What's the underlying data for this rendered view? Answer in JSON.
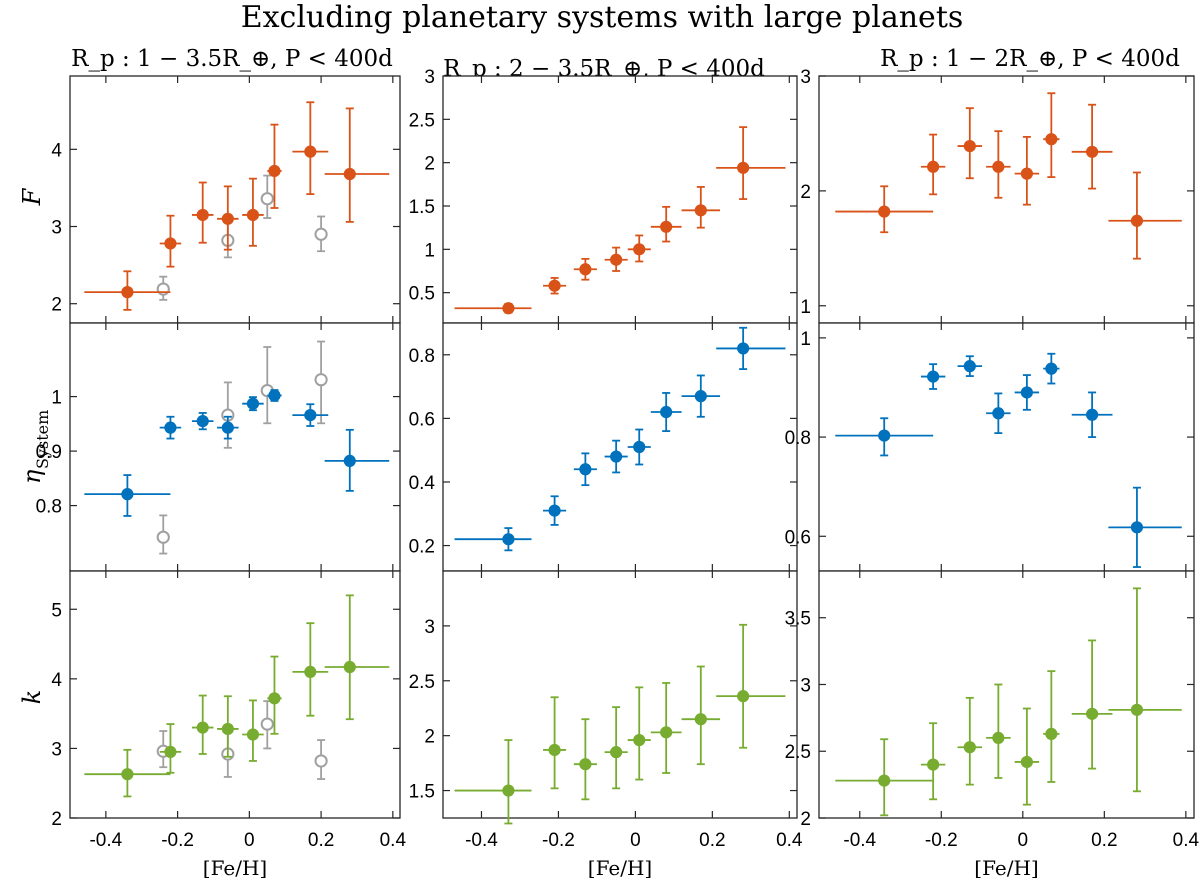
{
  "title": "Excluding planetary systems with large planets",
  "x_label": "[Fe/H]",
  "x_ticks": [
    "-0.4",
    "-0.2",
    "0",
    "0.2",
    "0.4"
  ],
  "row_labels": {
    "F": "F",
    "eta": "η",
    "eta_sub": "System",
    "k": "k"
  },
  "columns": [
    {
      "title": "R_p : 1 − 3.5R_⊕,  P < 400d"
    },
    {
      "title": "R_p : 2 − 3.5R_⊕,  P < 400d"
    },
    {
      "title": "R_p : 1 − 2R_⊕,  P < 400d"
    }
  ],
  "colors": {
    "F": "#d95319",
    "eta": "#0072bd",
    "k": "#77ac30",
    "comparison": "#a0a0a0"
  },
  "chart_data": [
    {
      "type": "scatter",
      "row": "F",
      "col": 0,
      "title": "R_p : 1 − 3.5R_⊕,  P < 400d",
      "ylabel": "F",
      "xlabel": "",
      "xlim": [
        -0.5,
        0.42
      ],
      "ylim": [
        1.75,
        4.95
      ],
      "yticks": [
        2,
        3,
        4
      ],
      "series": [
        {
          "name": "main",
          "style": "filled",
          "color": "#d95319",
          "x": [
            -0.34,
            -0.22,
            -0.13,
            -0.06,
            0.01,
            0.07,
            0.17,
            0.28
          ],
          "y": [
            2.15,
            2.78,
            3.15,
            3.1,
            3.15,
            3.72,
            3.97,
            3.68
          ],
          "xerr_lo": [
            0.12,
            0.03,
            0.03,
            0.03,
            0.03,
            0.02,
            0.05,
            0.07
          ],
          "xerr_hi": [
            0.12,
            0.03,
            0.03,
            0.03,
            0.03,
            0.02,
            0.05,
            0.11
          ],
          "yerr_lo": [
            0.23,
            0.3,
            0.36,
            0.4,
            0.4,
            0.48,
            0.55,
            0.62
          ],
          "yerr_hi": [
            0.27,
            0.36,
            0.42,
            0.42,
            0.47,
            0.6,
            0.64,
            0.85
          ]
        },
        {
          "name": "comparison",
          "style": "open",
          "color": "#a0a0a0",
          "x": [
            -0.24,
            -0.06,
            0.05,
            0.2
          ],
          "y": [
            2.19,
            2.82,
            3.36,
            2.9
          ],
          "xerr_lo": [
            0,
            0,
            0,
            0
          ],
          "xerr_hi": [
            0,
            0,
            0,
            0
          ],
          "yerr_lo": [
            0.14,
            0.22,
            0.25,
            0.22
          ],
          "yerr_hi": [
            0.16,
            0.25,
            0.3,
            0.23
          ]
        }
      ]
    },
    {
      "type": "scatter",
      "row": "F",
      "col": 1,
      "title": "R_p : 2 − 3.5R_⊕,  P < 400d",
      "ylabel": "",
      "xlabel": "",
      "xlim": [
        -0.5,
        0.42
      ],
      "ylim": [
        0.15,
        3.0
      ],
      "yticks": [
        0.5,
        1,
        1.5,
        2,
        2.5,
        3
      ],
      "series": [
        {
          "name": "main",
          "style": "filled",
          "color": "#d95319",
          "x": [
            -0.33,
            -0.21,
            -0.13,
            -0.05,
            0.01,
            0.08,
            0.17,
            0.28
          ],
          "y": [
            0.32,
            0.58,
            0.77,
            0.88,
            1.0,
            1.26,
            1.45,
            1.94
          ],
          "xerr_lo": [
            0.14,
            0.03,
            0.03,
            0.03,
            0.03,
            0.04,
            0.05,
            0.07
          ],
          "xerr_hi": [
            0.06,
            0.03,
            0.03,
            0.03,
            0.03,
            0.04,
            0.05,
            0.11
          ],
          "yerr_lo": [
            0.05,
            0.09,
            0.12,
            0.13,
            0.14,
            0.17,
            0.2,
            0.36
          ],
          "yerr_hi": [
            0.05,
            0.09,
            0.12,
            0.14,
            0.16,
            0.23,
            0.27,
            0.47
          ]
        }
      ]
    },
    {
      "type": "scatter",
      "row": "F",
      "col": 2,
      "title": "R_p : 1 − 2R_⊕,  P < 400d",
      "ylabel": "",
      "xlabel": "",
      "xlim": [
        -0.5,
        0.42
      ],
      "ylim": [
        0.85,
        3.0
      ],
      "yticks": [
        1,
        2,
        3
      ],
      "series": [
        {
          "name": "main",
          "style": "filled",
          "color": "#d95319",
          "x": [
            -0.34,
            -0.22,
            -0.13,
            -0.06,
            0.01,
            0.07,
            0.17,
            0.28
          ],
          "y": [
            1.82,
            2.21,
            2.39,
            2.21,
            2.15,
            2.45,
            2.34,
            1.74
          ],
          "xerr_lo": [
            0.12,
            0.03,
            0.03,
            0.03,
            0.03,
            0.02,
            0.05,
            0.07
          ],
          "xerr_hi": [
            0.12,
            0.03,
            0.03,
            0.03,
            0.03,
            0.02,
            0.05,
            0.11
          ],
          "yerr_lo": [
            0.18,
            0.24,
            0.28,
            0.27,
            0.27,
            0.33,
            0.32,
            0.33
          ],
          "yerr_hi": [
            0.22,
            0.28,
            0.33,
            0.31,
            0.32,
            0.4,
            0.41,
            0.42
          ]
        }
      ]
    },
    {
      "type": "scatter",
      "row": "eta",
      "col": 0,
      "title": "",
      "ylabel": "η_System",
      "xlabel": "",
      "xlim": [
        -0.5,
        0.42
      ],
      "ylim": [
        0.68,
        1.135
      ],
      "yticks": [
        0.8,
        0.9,
        1
      ],
      "series": [
        {
          "name": "main",
          "style": "filled",
          "color": "#0072bd",
          "x": [
            -0.34,
            -0.22,
            -0.13,
            -0.06,
            0.01,
            0.07,
            0.17,
            0.28
          ],
          "y": [
            0.821,
            0.943,
            0.955,
            0.943,
            0.987,
            1.002,
            0.966,
            0.882
          ],
          "xerr_lo": [
            0.12,
            0.03,
            0.03,
            0.03,
            0.03,
            0.02,
            0.05,
            0.07
          ],
          "xerr_hi": [
            0.12,
            0.03,
            0.03,
            0.03,
            0.03,
            0.02,
            0.05,
            0.11
          ],
          "yerr_lo": [
            0.04,
            0.02,
            0.015,
            0.02,
            0.012,
            0.01,
            0.02,
            0.055
          ],
          "yerr_hi": [
            0.035,
            0.02,
            0.015,
            0.02,
            0.012,
            0.01,
            0.02,
            0.057
          ]
        },
        {
          "name": "comparison",
          "style": "open",
          "color": "#a0a0a0",
          "x": [
            -0.24,
            -0.06,
            0.05,
            0.2
          ],
          "y": [
            0.742,
            0.966,
            1.011,
            1.031
          ],
          "xerr_lo": [
            0,
            0,
            0,
            0
          ],
          "xerr_hi": [
            0,
            0,
            0,
            0
          ],
          "yerr_lo": [
            0.03,
            0.06,
            0.06,
            0.08
          ],
          "yerr_hi": [
            0.04,
            0.06,
            0.08,
            0.07
          ]
        }
      ]
    },
    {
      "type": "scatter",
      "row": "eta",
      "col": 1,
      "title": "",
      "ylabel": "",
      "xlabel": "",
      "xlim": [
        -0.5,
        0.42
      ],
      "ylim": [
        0.12,
        0.9
      ],
      "yticks": [
        0.2,
        0.4,
        0.6,
        0.8
      ],
      "series": [
        {
          "name": "main",
          "style": "filled",
          "color": "#0072bd",
          "x": [
            -0.33,
            -0.21,
            -0.13,
            -0.05,
            0.01,
            0.08,
            0.17,
            0.28
          ],
          "y": [
            0.22,
            0.31,
            0.44,
            0.48,
            0.51,
            0.62,
            0.67,
            0.82
          ],
          "xerr_lo": [
            0.14,
            0.03,
            0.03,
            0.03,
            0.03,
            0.04,
            0.05,
            0.07
          ],
          "xerr_hi": [
            0.06,
            0.03,
            0.03,
            0.03,
            0.03,
            0.04,
            0.05,
            0.11
          ],
          "yerr_lo": [
            0.035,
            0.045,
            0.05,
            0.05,
            0.055,
            0.06,
            0.065,
            0.065
          ],
          "yerr_hi": [
            0.035,
            0.045,
            0.05,
            0.05,
            0.055,
            0.06,
            0.065,
            0.065
          ]
        }
      ]
    },
    {
      "type": "scatter",
      "row": "eta",
      "col": 2,
      "title": "",
      "ylabel": "",
      "xlabel": "",
      "xlim": [
        -0.5,
        0.42
      ],
      "ylim": [
        0.53,
        1.03
      ],
      "yticks": [
        0.6,
        0.8,
        1
      ],
      "series": [
        {
          "name": "main",
          "style": "filled",
          "color": "#0072bd",
          "x": [
            -0.34,
            -0.22,
            -0.13,
            -0.06,
            0.01,
            0.07,
            0.17,
            0.28
          ],
          "y": [
            0.803,
            0.922,
            0.943,
            0.848,
            0.89,
            0.938,
            0.845,
            0.618
          ],
          "xerr_lo": [
            0.12,
            0.03,
            0.03,
            0.03,
            0.03,
            0.02,
            0.05,
            0.07
          ],
          "xerr_hi": [
            0.12,
            0.03,
            0.03,
            0.03,
            0.03,
            0.02,
            0.05,
            0.11
          ],
          "yerr_lo": [
            0.04,
            0.025,
            0.02,
            0.04,
            0.035,
            0.03,
            0.045,
            0.08
          ],
          "yerr_hi": [
            0.035,
            0.025,
            0.02,
            0.04,
            0.035,
            0.03,
            0.045,
            0.08
          ]
        }
      ]
    },
    {
      "type": "scatter",
      "row": "k",
      "col": 0,
      "title": "",
      "ylabel": "k",
      "xlabel": "[Fe/H]",
      "xlim": [
        -0.5,
        0.42
      ],
      "ylim": [
        2.0,
        5.55
      ],
      "yticks": [
        2,
        3,
        4,
        5
      ],
      "series": [
        {
          "name": "main",
          "style": "filled",
          "color": "#77ac30",
          "x": [
            -0.34,
            -0.22,
            -0.13,
            -0.06,
            0.01,
            0.07,
            0.17,
            0.28
          ],
          "y": [
            2.63,
            2.95,
            3.3,
            3.28,
            3.2,
            3.72,
            4.1,
            4.17
          ],
          "xerr_lo": [
            0.12,
            0.03,
            0.03,
            0.03,
            0.03,
            0.02,
            0.05,
            0.07
          ],
          "xerr_hi": [
            0.12,
            0.03,
            0.03,
            0.03,
            0.03,
            0.02,
            0.05,
            0.11
          ],
          "yerr_lo": [
            0.32,
            0.3,
            0.38,
            0.4,
            0.38,
            0.51,
            0.63,
            0.75
          ],
          "yerr_hi": [
            0.35,
            0.4,
            0.46,
            0.47,
            0.49,
            0.6,
            0.7,
            1.03
          ]
        },
        {
          "name": "comparison",
          "style": "open",
          "color": "#a0a0a0",
          "x": [
            -0.24,
            -0.06,
            0.05,
            0.2
          ],
          "y": [
            2.96,
            2.92,
            3.35,
            2.82
          ],
          "xerr_lo": [
            0,
            0,
            0,
            0
          ],
          "xerr_hi": [
            0,
            0,
            0,
            0
          ],
          "yerr_lo": [
            0.23,
            0.33,
            0.35,
            0.26
          ],
          "yerr_hi": [
            0.29,
            0.37,
            0.33,
            0.3
          ]
        }
      ]
    },
    {
      "type": "scatter",
      "row": "k",
      "col": 1,
      "title": "",
      "ylabel": "",
      "xlabel": "[Fe/H]",
      "xlim": [
        -0.5,
        0.42
      ],
      "ylim": [
        1.25,
        3.5
      ],
      "yticks": [
        1.5,
        2,
        2.5,
        3
      ],
      "series": [
        {
          "name": "main",
          "style": "filled",
          "color": "#77ac30",
          "x": [
            -0.33,
            -0.21,
            -0.13,
            -0.05,
            0.01,
            0.08,
            0.17,
            0.28
          ],
          "y": [
            1.5,
            1.87,
            1.74,
            1.85,
            1.96,
            2.03,
            2.15,
            2.36
          ],
          "xerr_lo": [
            0.14,
            0.03,
            0.03,
            0.03,
            0.03,
            0.04,
            0.05,
            0.07
          ],
          "xerr_hi": [
            0.06,
            0.03,
            0.03,
            0.03,
            0.03,
            0.04,
            0.05,
            0.11
          ],
          "yerr_lo": [
            0.3,
            0.35,
            0.32,
            0.33,
            0.36,
            0.37,
            0.41,
            0.47
          ],
          "yerr_hi": [
            0.46,
            0.48,
            0.41,
            0.41,
            0.48,
            0.45,
            0.48,
            0.65
          ]
        }
      ]
    },
    {
      "type": "scatter",
      "row": "k",
      "col": 2,
      "title": "",
      "ylabel": "",
      "xlabel": "[Fe/H]",
      "xlim": [
        -0.5,
        0.42
      ],
      "ylim": [
        2.0,
        3.85
      ],
      "yticks": [
        2,
        2.5,
        3,
        3.5
      ],
      "series": [
        {
          "name": "main",
          "style": "filled",
          "color": "#77ac30",
          "x": [
            -0.34,
            -0.22,
            -0.13,
            -0.06,
            0.01,
            0.07,
            0.17,
            0.28
          ],
          "y": [
            2.28,
            2.4,
            2.53,
            2.6,
            2.42,
            2.63,
            2.78,
            2.81
          ],
          "xerr_lo": [
            0.12,
            0.03,
            0.03,
            0.03,
            0.03,
            0.02,
            0.05,
            0.07
          ],
          "xerr_hi": [
            0.12,
            0.03,
            0.03,
            0.03,
            0.03,
            0.02,
            0.05,
            0.11
          ],
          "yerr_lo": [
            0.26,
            0.26,
            0.28,
            0.3,
            0.32,
            0.36,
            0.41,
            0.61
          ],
          "yerr_hi": [
            0.31,
            0.31,
            0.37,
            0.4,
            0.4,
            0.47,
            0.55,
            0.91
          ]
        }
      ]
    }
  ]
}
